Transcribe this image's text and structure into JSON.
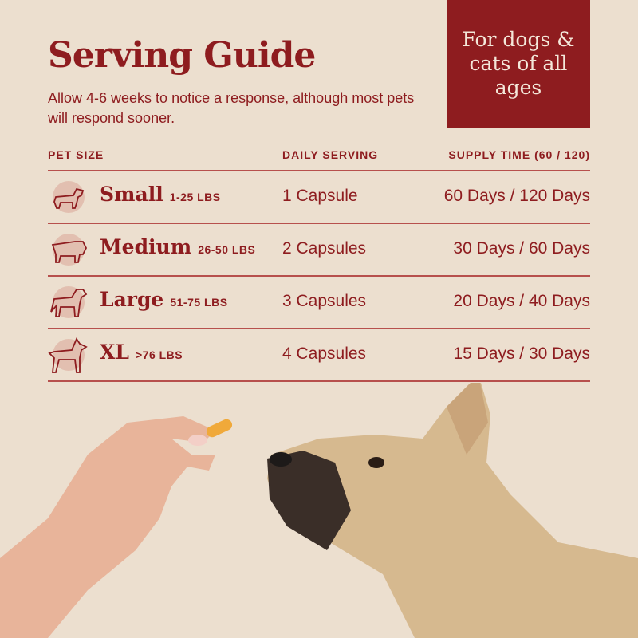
{
  "header": {
    "title": "Serving Guide",
    "subtitle": "Allow 4-6 weeks to notice a response, although most pets will respond sooner."
  },
  "badge": {
    "text": "For dogs & cats of all ages"
  },
  "table": {
    "columns": [
      "PET SIZE",
      "DAILY SERVING",
      "SUPPLY TIME (60 / 120)"
    ],
    "rows": [
      {
        "icon": "dachshund-icon",
        "size": "Small",
        "weight": "1-25 LBS",
        "serving": "1 Capsule",
        "supply": "60 Days / 120 Days"
      },
      {
        "icon": "bulldog-icon",
        "size": "Medium",
        "weight": "26-50 LBS",
        "serving": "2 Capsules",
        "supply": "30 Days / 60 Days"
      },
      {
        "icon": "retriever-icon",
        "size": "Large",
        "weight": "51-75 LBS",
        "serving": "3 Capsules",
        "supply": "20 Days / 40 Days"
      },
      {
        "icon": "doberman-icon",
        "size": "XL",
        "weight": ">76 LBS",
        "serving": "4 Capsules",
        "supply": "15 Days / 30 Days"
      }
    ]
  },
  "colors": {
    "background": "#ecdfcf",
    "brand_red": "#8e1c1f",
    "icon_circle": "#e2bfb0",
    "capsule": "#f0a93a"
  }
}
